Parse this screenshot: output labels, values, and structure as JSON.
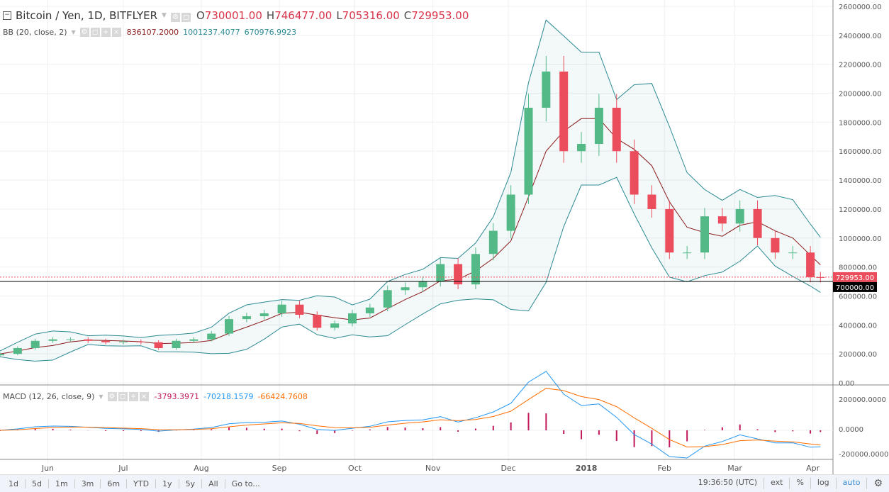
{
  "header": {
    "symbol": "Bitcoin / Yen, 1D, BITFLYER",
    "open_label": "O",
    "open": "730001.00",
    "high_label": "H",
    "high": "746477.00",
    "low_label": "L",
    "low": "705316.00",
    "close_label": "C",
    "close": "729953.00"
  },
  "bb_legend": {
    "name": "BB (20, close, 2)",
    "basis": "836107.2000",
    "upper": "1001237.4077",
    "lower": "670976.9923"
  },
  "macd_legend": {
    "name": "MACD (12, 26, close, 9)",
    "hist": "-3793.3971",
    "macd": "-70218.1579",
    "signal": "-66424.7608"
  },
  "bottom_bar": {
    "ranges": [
      "1d",
      "5d",
      "1m",
      "3m",
      "6m",
      "YTD",
      "1y",
      "5y",
      "All",
      "Go to..."
    ],
    "time": "19:36:50 (UTC)",
    "options": [
      "ext",
      "%",
      "log",
      "auto"
    ]
  },
  "colors": {
    "up": "#53b987",
    "down": "#eb4d5c",
    "bb_band": "#2b8a93",
    "bb_basis": "#8b1a1a",
    "macd": "#2196f3",
    "signal": "#ff6d00",
    "hist": "#c2185b"
  },
  "chart_data": {
    "type": "candlestick",
    "x_ticks": [
      "Jun",
      "Jul",
      "Aug",
      "Sep",
      "Oct",
      "Nov",
      "Dec",
      "2018",
      "Feb",
      "Mar",
      "Apr"
    ],
    "y_ticks": [
      2600000,
      2400000,
      2200000,
      2000000,
      1800000,
      1600000,
      1400000,
      1200000,
      1000000,
      800000,
      600000,
      400000,
      200000,
      0
    ],
    "ylim": [
      0,
      2600000
    ],
    "last_price_label": "729953.00",
    "horizontal_line_label": "700000.00",
    "horizontal_line": 700000,
    "macd_ticks": [
      "200000.0000",
      "0.0000",
      "-200000.0000"
    ],
    "weekly_close": [
      [
        "2017-05-13",
        200000
      ],
      [
        "2017-05-20",
        240000
      ],
      [
        "2017-05-27",
        290000
      ],
      [
        "2017-06-03",
        300000
      ],
      [
        "2017-06-10",
        300000
      ],
      [
        "2017-06-17",
        290000
      ],
      [
        "2017-06-24",
        280000
      ],
      [
        "2017-07-01",
        285000
      ],
      [
        "2017-07-08",
        280000
      ],
      [
        "2017-07-15",
        240000
      ],
      [
        "2017-07-22",
        290000
      ],
      [
        "2017-07-29",
        300000
      ],
      [
        "2017-08-05",
        340000
      ],
      [
        "2017-08-12",
        440000
      ],
      [
        "2017-08-19",
        460000
      ],
      [
        "2017-08-26",
        480000
      ],
      [
        "2017-09-02",
        540000
      ],
      [
        "2017-09-09",
        470000
      ],
      [
        "2017-09-16",
        380000
      ],
      [
        "2017-09-23",
        410000
      ],
      [
        "2017-09-30",
        480000
      ],
      [
        "2017-10-07",
        520000
      ],
      [
        "2017-10-14",
        640000
      ],
      [
        "2017-10-21",
        660000
      ],
      [
        "2017-10-28",
        700000
      ],
      [
        "2017-11-04",
        820000
      ],
      [
        "2017-11-11",
        680000
      ],
      [
        "2017-11-18",
        890000
      ],
      [
        "2017-11-25",
        1050000
      ],
      [
        "2017-12-02",
        1300000
      ],
      [
        "2017-12-09",
        1900000
      ],
      [
        "2017-12-16",
        2150000
      ],
      [
        "2017-12-23",
        1600000
      ],
      [
        "2017-12-30",
        1650000
      ],
      [
        "2018-01-06",
        1900000
      ],
      [
        "2018-01-13",
        1600000
      ],
      [
        "2018-01-20",
        1300000
      ],
      [
        "2018-01-27",
        1200000
      ],
      [
        "2018-02-03",
        900000
      ],
      [
        "2018-02-10",
        900000
      ],
      [
        "2018-02-17",
        1150000
      ],
      [
        "2018-02-24",
        1100000
      ],
      [
        "2018-03-03",
        1200000
      ],
      [
        "2018-03-10",
        1000000
      ],
      [
        "2018-03-17",
        900000
      ],
      [
        "2018-03-24",
        900000
      ],
      [
        "2018-03-31",
        730000
      ],
      [
        "2018-04-04",
        729953
      ]
    ]
  }
}
